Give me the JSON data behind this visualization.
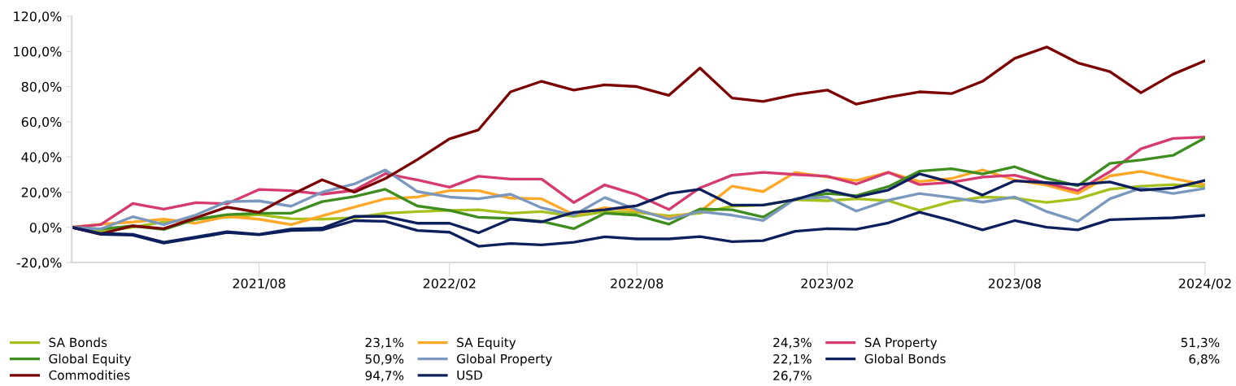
{
  "chart_data": {
    "type": "line",
    "x": [
      "2021-02",
      "2021-03",
      "2021-04",
      "2021-05",
      "2021-06",
      "2021-07",
      "2021-08",
      "2021-09",
      "2021-10",
      "2021-11",
      "2021-12",
      "2022-01",
      "2022-02",
      "2022-03",
      "2022-04",
      "2022-05",
      "2022-06",
      "2022-07",
      "2022-08",
      "2022-09",
      "2022-10",
      "2022-11",
      "2022-12",
      "2023-01",
      "2023-02",
      "2023-03",
      "2023-04",
      "2023-05",
      "2023-06",
      "2023-07",
      "2023-08",
      "2023-09",
      "2023-10",
      "2023-11",
      "2023-12",
      "2024-01",
      "2024-02"
    ],
    "series": [
      {
        "name": "SA Bonds",
        "color": "#a5c11c",
        "values": [
          0,
          -2.3,
          0,
          3,
          4.6,
          5.7,
          7.2,
          4.9,
          4.6,
          5.4,
          8,
          8.9,
          9.6,
          10,
          8,
          8.9,
          6.2,
          8.8,
          8.5,
          6.5,
          8,
          12,
          12.6,
          15.7,
          15.1,
          16.2,
          15.1,
          9.6,
          14.6,
          17.2,
          16.6,
          14.1,
          16.2,
          21.6,
          23.4,
          24.3,
          23.1
        ]
      },
      {
        "name": "SA Equity",
        "color": "#ffa726",
        "values": [
          0,
          1.8,
          3,
          4.6,
          2.3,
          6.2,
          4.6,
          1.5,
          6.5,
          11.5,
          16.2,
          17.2,
          20.8,
          20.8,
          16.6,
          16.2,
          7.2,
          11.1,
          9.6,
          5.4,
          8.9,
          23.4,
          20.3,
          31.2,
          28.6,
          26.6,
          31.2,
          26,
          27.7,
          32.6,
          26.9,
          23.9,
          19.2,
          29.2,
          31.8,
          27.7,
          24.3
        ]
      },
      {
        "name": "SA Property",
        "color": "#d63b6f",
        "values": [
          0,
          1.5,
          13.5,
          10.3,
          14,
          13.4,
          21.5,
          20.8,
          18.8,
          21,
          30.5,
          26.9,
          22.8,
          29,
          27.4,
          27.4,
          14.1,
          24.1,
          18.5,
          10.1,
          22.4,
          29.6,
          31.2,
          30,
          29,
          24.6,
          31.2,
          24.3,
          25.6,
          28.6,
          29.6,
          25,
          20.8,
          31.6,
          44.6,
          50.5,
          51.3
        ]
      },
      {
        "name": "Global Equity",
        "color": "#3f8c1f",
        "values": [
          0,
          -1,
          0.8,
          -1.2,
          4.6,
          7.2,
          8,
          8,
          14.6,
          17.5,
          21.6,
          12.1,
          9.6,
          5.7,
          5,
          3.4,
          -0.8,
          8,
          6.9,
          1.8,
          10.4,
          10,
          5.8,
          16.2,
          19.2,
          17.9,
          23.1,
          31.9,
          33.3,
          30.3,
          34.4,
          27.9,
          23.6,
          36.3,
          38.3,
          40.9,
          50.9
        ]
      },
      {
        "name": "Global Property",
        "color": "#7a98bd",
        "values": [
          0,
          -1,
          6,
          1.5,
          7,
          14.6,
          15,
          12,
          20,
          24.6,
          32.6,
          20.3,
          17.2,
          16.2,
          18.8,
          11.1,
          6.9,
          16.9,
          10,
          4.6,
          8.9,
          6.9,
          3.8,
          16.2,
          17.2,
          9.2,
          15.4,
          19.2,
          16.9,
          14.3,
          17.2,
          8.9,
          3.4,
          16.2,
          22.3,
          19.2,
          22.1
        ]
      },
      {
        "name": "Global Bonds",
        "color": "#0d1f5c",
        "values": [
          0,
          -4,
          -4.5,
          -9,
          -6,
          -3,
          -4.2,
          -1.8,
          -1.5,
          3.8,
          3.4,
          -1.8,
          -2.8,
          -10.8,
          -9.2,
          -10,
          -8.5,
          -5.4,
          -6.6,
          -6.6,
          -5.3,
          -8.2,
          -7.6,
          -2.3,
          -0.8,
          -1.1,
          2.5,
          8.6,
          3.8,
          -1.5,
          3.8,
          0,
          -1.5,
          4.3,
          4.9,
          5.4,
          6.8
        ]
      },
      {
        "name": "Commodities",
        "color": "#7b0000",
        "values": [
          0,
          -3.8,
          0.8,
          -0.8,
          5.4,
          11.5,
          8.5,
          18.5,
          27,
          20,
          27.7,
          38.5,
          50.3,
          55.4,
          77,
          83,
          78,
          81,
          80,
          75,
          90.5,
          73.5,
          71.5,
          75.5,
          78,
          70,
          74,
          77,
          76,
          83,
          96,
          102.5,
          93.5,
          88.5,
          76.5,
          87,
          94.7
        ]
      },
      {
        "name": "USD",
        "color": "#0d1f5c",
        "values": [
          0,
          -3.5,
          -4,
          -8.5,
          -5.5,
          -2.5,
          -4,
          -1,
          -0.5,
          6.2,
          6.2,
          2.3,
          2.3,
          -3.1,
          4.6,
          3.1,
          8.5,
          10,
          12.3,
          19.2,
          21.6,
          12.6,
          12.6,
          15.7,
          21.2,
          17.2,
          21.2,
          30.4,
          25.6,
          18.3,
          26.4,
          25.4,
          24.3,
          25.8,
          21.1,
          22.3,
          26.7
        ]
      }
    ],
    "annotations": [
      "23,1%",
      "24,3%",
      "51,3%",
      "50,9%",
      "22,1%",
      "6,8%",
      "94,7%",
      "26,7%"
    ],
    "xlim": [
      "2021-02",
      "2024-02"
    ],
    "xticks": [
      {
        "value": "2021-08",
        "label": "2021/08"
      },
      {
        "value": "2022-02",
        "label": "2022/02"
      },
      {
        "value": "2022-08",
        "label": "2022/08"
      },
      {
        "value": "2023-02",
        "label": "2023/02"
      },
      {
        "value": "2023-08",
        "label": "2023/08"
      },
      {
        "value": "2024-02",
        "label": "2024/02"
      }
    ],
    "ylim": [
      -20,
      120
    ],
    "yticks": [
      {
        "value": -20,
        "label": "-20,0%"
      },
      {
        "value": 0,
        "label": "0,0%"
      },
      {
        "value": 20,
        "label": "20,0%"
      },
      {
        "value": 40,
        "label": "40,0%"
      },
      {
        "value": 60,
        "label": "60,0%"
      },
      {
        "value": 80,
        "label": "80,0%"
      },
      {
        "value": 100,
        "label": "100,0%"
      },
      {
        "value": 120,
        "label": "120,0%"
      }
    ],
    "grid": false,
    "legend": "bottom",
    "line_style": "solid",
    "marker": "none"
  }
}
